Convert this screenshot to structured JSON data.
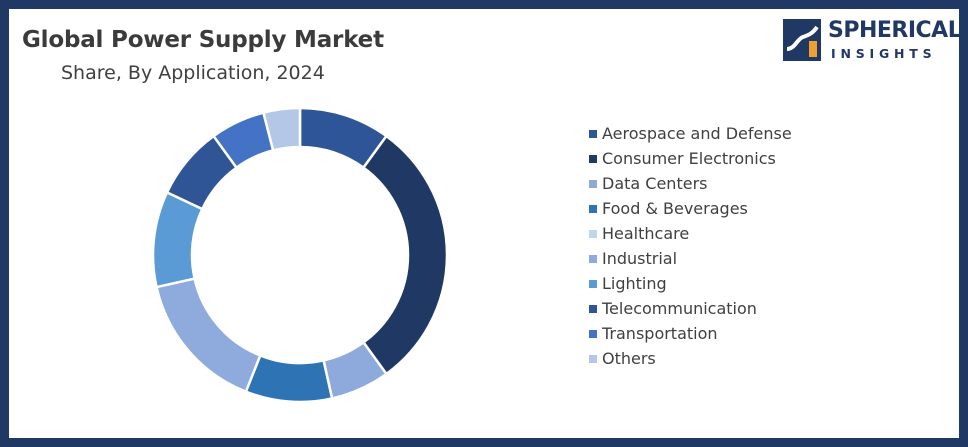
{
  "header": {
    "title": "Global Power Supply Market",
    "subtitle": "Share, By Application, 2024"
  },
  "logo": {
    "line1": "SPHERICAL",
    "line2": "INSIGHTS",
    "colors": {
      "dark": "#1f3864",
      "accent": "#f0a030"
    }
  },
  "chart_data": {
    "type": "pie",
    "variant": "donut",
    "title": "Global Power Supply Market",
    "subtitle": "Share, By Application, 2024",
    "legend_position": "right",
    "categories": [
      "Aerospace and Defense",
      "Consumer Electronics",
      "Data Centers",
      "Food & Beverages",
      "Healthcare",
      "Industrial",
      "Lighting",
      "Telecommunication",
      "Transportation",
      "Others"
    ],
    "values": [
      10,
      30,
      6.5,
      9.5,
      0,
      15.5,
      10.5,
      8,
      6,
      4
    ],
    "colors": [
      "#2e5597",
      "#203864",
      "#8ea9db",
      "#2e74b5",
      "#bdd7ee",
      "#8faadc",
      "#5b9bd5",
      "#2f5597",
      "#4472c4",
      "#b4c7e7"
    ]
  }
}
